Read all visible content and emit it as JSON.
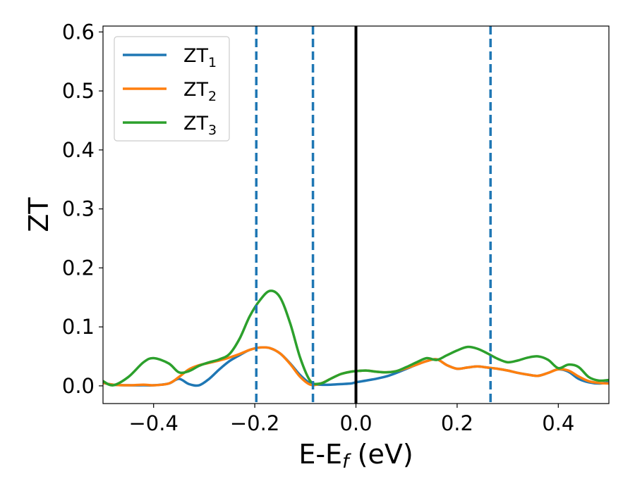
{
  "chart_data": {
    "type": "line",
    "title": "",
    "xlabel": "E-E",
    "xlabel_sub": "f",
    "xlabel_unit": " (eV)",
    "ylabel": "ZT",
    "xlim": [
      -0.5,
      0.5
    ],
    "ylim": [
      -0.03,
      0.61
    ],
    "xticks": [
      -0.4,
      -0.2,
      0.0,
      0.2,
      0.4
    ],
    "xtick_labels": [
      "−0.4",
      "−0.2",
      "0.0",
      "0.2",
      "0.4"
    ],
    "yticks": [
      0.0,
      0.1,
      0.2,
      0.3,
      0.4,
      0.5,
      0.6
    ],
    "ytick_labels": [
      "0.0",
      "0.1",
      "0.2",
      "0.3",
      "0.4",
      "0.5",
      "0.6"
    ],
    "grid": false,
    "legend_position": "top-left",
    "vertical_lines": [
      {
        "x": -0.197,
        "style": "dashed",
        "color": "#1f77b4"
      },
      {
        "x": -0.085,
        "style": "dashed",
        "color": "#1f77b4"
      },
      {
        "x": 0.0,
        "style": "solid",
        "color": "#000000"
      },
      {
        "x": 0.266,
        "style": "dashed",
        "color": "#1f77b4"
      }
    ],
    "series": [
      {
        "name": "ZT",
        "name_sub": "1",
        "color": "#1f77b4",
        "x": [
          -0.5,
          -0.48,
          -0.45,
          -0.42,
          -0.4,
          -0.37,
          -0.35,
          -0.33,
          -0.31,
          -0.29,
          -0.27,
          -0.25,
          -0.23,
          -0.21,
          -0.19,
          -0.17,
          -0.15,
          -0.13,
          -0.11,
          -0.09,
          -0.07,
          -0.05,
          -0.03,
          -0.01,
          0.0,
          0.02,
          0.04,
          0.06,
          0.08,
          0.1,
          0.12,
          0.14,
          0.16,
          0.18,
          0.2,
          0.22,
          0.24,
          0.26,
          0.28,
          0.3,
          0.32,
          0.34,
          0.36,
          0.38,
          0.4,
          0.42,
          0.44,
          0.46,
          0.48,
          0.5
        ],
        "y": [
          0.005,
          0.002,
          0.001,
          0.001,
          0.001,
          0.004,
          0.012,
          0.003,
          0.001,
          0.012,
          0.028,
          0.042,
          0.052,
          0.061,
          0.065,
          0.064,
          0.055,
          0.038,
          0.018,
          0.004,
          0.002,
          0.002,
          0.003,
          0.004,
          0.006,
          0.009,
          0.012,
          0.016,
          0.022,
          0.029,
          0.036,
          0.042,
          0.045,
          0.035,
          0.029,
          0.031,
          0.033,
          0.031,
          0.029,
          0.026,
          0.022,
          0.019,
          0.017,
          0.022,
          0.028,
          0.024,
          0.012,
          0.006,
          0.004,
          0.006
        ]
      },
      {
        "name": "ZT",
        "name_sub": "2",
        "color": "#ff7f0e",
        "x": [
          -0.5,
          -0.48,
          -0.45,
          -0.42,
          -0.4,
          -0.37,
          -0.35,
          -0.33,
          -0.31,
          -0.29,
          -0.27,
          -0.25,
          -0.23,
          -0.21,
          -0.19,
          -0.17,
          -0.15,
          -0.13,
          -0.11,
          -0.09,
          -0.07,
          -0.05,
          -0.03,
          -0.01,
          0.0,
          0.02,
          0.04,
          0.06,
          0.08,
          0.1,
          0.12,
          0.14,
          0.16,
          0.18,
          0.2,
          0.22,
          0.24,
          0.26,
          0.28,
          0.3,
          0.32,
          0.34,
          0.36,
          0.38,
          0.4,
          0.42,
          0.44,
          0.46,
          0.48,
          0.5
        ],
        "y": [
          0.005,
          0.002,
          0.001,
          0.002,
          0.001,
          0.004,
          0.015,
          0.028,
          0.035,
          0.039,
          0.043,
          0.048,
          0.054,
          0.061,
          0.065,
          0.064,
          0.055,
          0.037,
          0.015,
          0.002,
          0.004,
          0.012,
          0.02,
          0.024,
          0.025,
          0.026,
          0.024,
          0.023,
          0.025,
          0.03,
          0.036,
          0.042,
          0.045,
          0.035,
          0.029,
          0.031,
          0.033,
          0.031,
          0.029,
          0.026,
          0.022,
          0.019,
          0.017,
          0.022,
          0.028,
          0.026,
          0.016,
          0.008,
          0.005,
          0.004
        ]
      },
      {
        "name": "ZT",
        "name_sub": "3",
        "color": "#2ca02c",
        "x": [
          -0.5,
          -0.48,
          -0.45,
          -0.42,
          -0.4,
          -0.37,
          -0.35,
          -0.33,
          -0.31,
          -0.29,
          -0.27,
          -0.25,
          -0.23,
          -0.21,
          -0.19,
          -0.17,
          -0.15,
          -0.13,
          -0.11,
          -0.09,
          -0.07,
          -0.05,
          -0.03,
          -0.01,
          0.0,
          0.02,
          0.04,
          0.06,
          0.08,
          0.1,
          0.12,
          0.14,
          0.16,
          0.18,
          0.2,
          0.22,
          0.24,
          0.26,
          0.28,
          0.3,
          0.32,
          0.34,
          0.36,
          0.38,
          0.4,
          0.42,
          0.44,
          0.46,
          0.48,
          0.5
        ],
        "y": [
          0.008,
          0.001,
          0.015,
          0.04,
          0.047,
          0.038,
          0.023,
          0.025,
          0.034,
          0.04,
          0.045,
          0.054,
          0.08,
          0.118,
          0.145,
          0.161,
          0.15,
          0.106,
          0.047,
          0.008,
          0.004,
          0.012,
          0.02,
          0.024,
          0.025,
          0.026,
          0.024,
          0.023,
          0.025,
          0.032,
          0.04,
          0.047,
          0.044,
          0.052,
          0.06,
          0.066,
          0.063,
          0.055,
          0.046,
          0.04,
          0.043,
          0.048,
          0.05,
          0.044,
          0.03,
          0.036,
          0.032,
          0.015,
          0.009,
          0.01
        ]
      }
    ]
  }
}
